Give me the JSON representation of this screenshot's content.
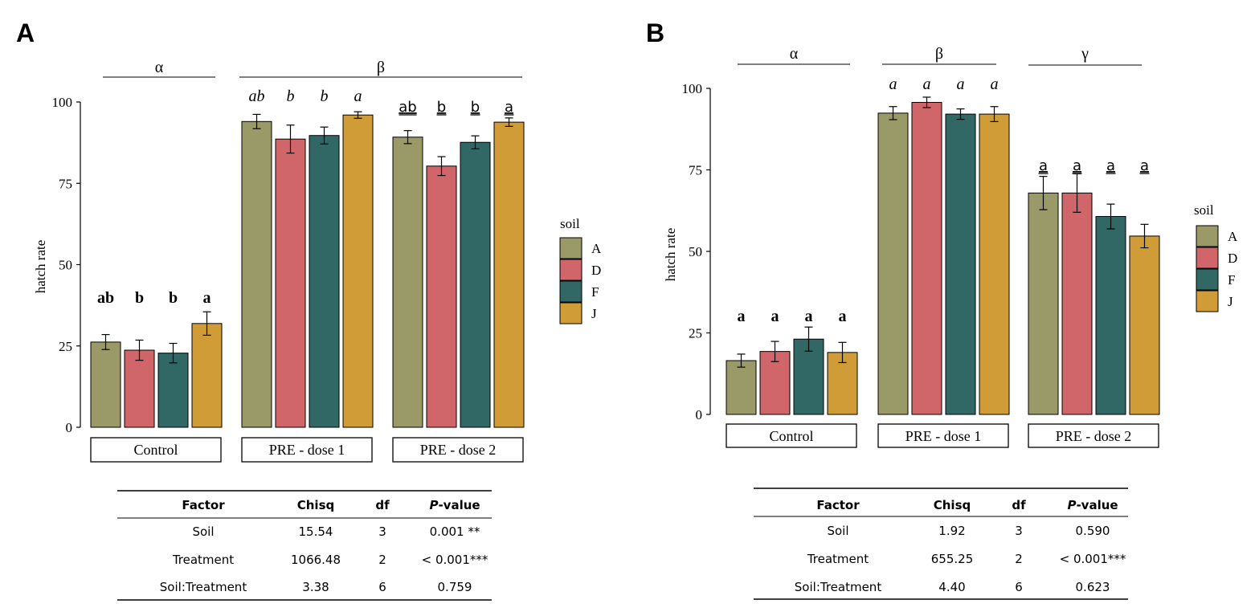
{
  "chart_data": [
    {
      "panel": "A",
      "type": "bar",
      "ylabel": "hatch rate",
      "yticks": [
        0,
        25,
        50,
        75,
        100
      ],
      "ylim": [
        0,
        100
      ],
      "legend": {
        "title": "soil",
        "entries": [
          "A",
          "D",
          "F",
          "J"
        ]
      },
      "colors": [
        "#9A9A68",
        "#D0666A",
        "#316866",
        "#D09C38"
      ],
      "groups": [
        {
          "strip": "Control",
          "bracket": "α",
          "values": [
            26.2,
            23.7,
            22.8,
            31.9
          ],
          "errors": [
            2.3,
            3.1,
            3.0,
            3.6
          ],
          "labels": [
            "ab",
            "b",
            "b",
            "a"
          ],
          "style": "bold"
        },
        {
          "strip": "PRE - dose 1",
          "bracket": "β",
          "values": [
            94.0,
            88.6,
            89.7,
            96.0
          ],
          "errors": [
            2.2,
            4.3,
            2.6,
            1.0
          ],
          "labels": [
            "ab",
            "b",
            "b",
            "a"
          ],
          "style": "italic"
        },
        {
          "strip": "PRE - dose 2",
          "bracket": "β",
          "values": [
            89.2,
            80.3,
            87.6,
            93.8
          ],
          "errors": [
            2.0,
            2.9,
            2.0,
            1.3
          ],
          "labels": [
            "ab",
            "b",
            "b",
            "a"
          ],
          "style": "underline"
        }
      ],
      "brackets": [
        "α",
        "β"
      ],
      "table": {
        "headers": [
          "Factor",
          "Chisq",
          "df",
          "P-value"
        ],
        "header_p": "P",
        "header_value": "-value",
        "rows": [
          [
            "Soil",
            "15.54",
            "3",
            "0.001 **"
          ],
          [
            "Treatment",
            "1066.48",
            "2",
            "< 0.001***"
          ],
          [
            "Soil:Treatment",
            "3.38",
            "6",
            "0.759"
          ]
        ]
      }
    },
    {
      "panel": "B",
      "type": "bar",
      "ylabel": "hatch rate",
      "yticks": [
        0,
        25,
        50,
        75,
        100
      ],
      "ylim": [
        0,
        100
      ],
      "legend": {
        "title": "soil",
        "entries": [
          "A",
          "D",
          "F",
          "J"
        ]
      },
      "colors": [
        "#9A9A68",
        "#D0666A",
        "#316866",
        "#D09C38"
      ],
      "groups": [
        {
          "strip": "Control",
          "bracket": "α",
          "values": [
            16.5,
            19.3,
            23.1,
            19.0
          ],
          "errors": [
            2.0,
            3.1,
            3.7,
            3.1
          ],
          "labels": [
            "a",
            "a",
            "a",
            "a"
          ],
          "style": "bold"
        },
        {
          "strip": "PRE - dose 1",
          "bracket": "β",
          "values": [
            92.4,
            95.7,
            92.1,
            92.1
          ],
          "errors": [
            2.0,
            1.6,
            1.6,
            2.3
          ],
          "labels": [
            "a",
            "a",
            "a",
            "a"
          ],
          "style": "italic"
        },
        {
          "strip": "PRE - dose 2",
          "bracket": "γ",
          "values": [
            67.9,
            67.9,
            60.7,
            54.7
          ],
          "errors": [
            5.1,
            5.9,
            3.8,
            3.6
          ],
          "labels": [
            "a",
            "a",
            "a",
            "a"
          ],
          "style": "underline"
        }
      ],
      "brackets": [
        "α",
        "β",
        "γ"
      ],
      "table": {
        "headers": [
          "Factor",
          "Chisq",
          "df",
          "P-value"
        ],
        "header_p": "P",
        "header_value": "-value",
        "rows": [
          [
            "Soil",
            "1.92",
            "3",
            "0.590"
          ],
          [
            "Treatment",
            "655.25",
            "2",
            "< 0.001***"
          ],
          [
            "Soil:Treatment",
            "4.40",
            "6",
            "0.623"
          ]
        ]
      }
    }
  ]
}
